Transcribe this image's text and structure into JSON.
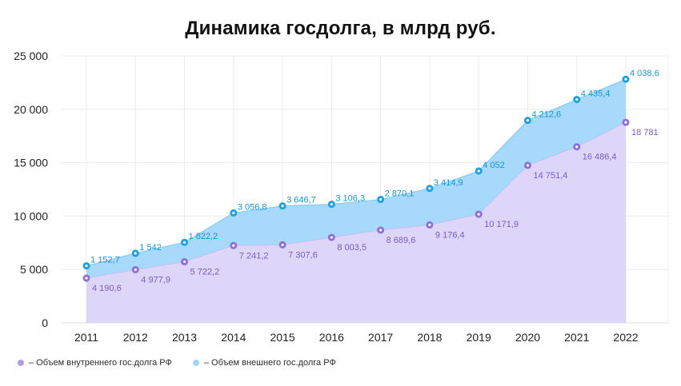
{
  "chart_data": {
    "type": "area",
    "title": "Динамика госдолга, в млрд руб.",
    "categories": [
      "2011",
      "2012",
      "2013",
      "2014",
      "2015",
      "2016",
      "2017",
      "2018",
      "2019",
      "2020",
      "2021",
      "2022"
    ],
    "y_ticks": [
      "0",
      "5 000",
      "10 000",
      "15 000",
      "20 000",
      "25 000"
    ],
    "ylim": [
      0,
      25000
    ],
    "stacked": true,
    "grid": true,
    "legend_position": "bottom-left",
    "series": [
      {
        "name": "– Объем внутреннего гос.долга РФ",
        "color": "#8e6fd2",
        "fill": "#ddd6f8",
        "values": [
          4190.6,
          4977.9,
          5722.2,
          7241.2,
          7307.6,
          8003.5,
          8689.6,
          9176.4,
          10171.9,
          14751.4,
          16486.4,
          18781
        ],
        "labels": [
          "4 190,6",
          "4 977,9",
          "5 722,2",
          "7 241,2",
          "7 307,6",
          "8 003,5",
          "8 689,6",
          "9 176,4",
          "10 171,9",
          "14 751,4",
          "16 486,4",
          "18 781"
        ]
      },
      {
        "name": "– Объем внешнего гос.долга РФ",
        "color": "#1e9fe0",
        "fill": "#a6d9fb",
        "values": [
          1152.7,
          1542,
          1822.2,
          3056.8,
          3646.7,
          3106.3,
          2870.1,
          3414.9,
          4052,
          4212.6,
          4435.4,
          4038.6
        ],
        "labels": [
          "1 152,7",
          "1 542",
          "1 822,2",
          "3 056,8",
          "3 646,7",
          "3 106,3",
          "2 870,1",
          "3 414,9",
          "4 052",
          "4 212,6",
          "4 435,4",
          "4 038,6"
        ]
      }
    ]
  }
}
